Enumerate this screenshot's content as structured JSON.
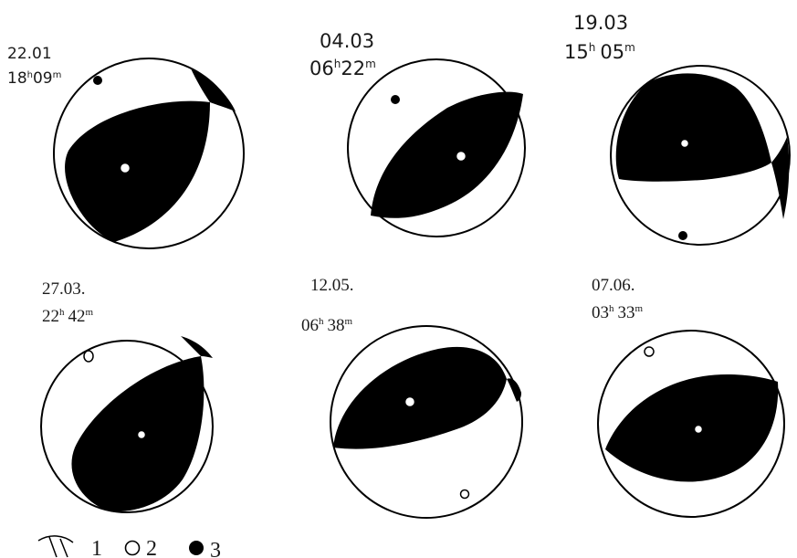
{
  "mechanisms": [
    {
      "date": "22.01",
      "time_h": "18",
      "time_m": "09",
      "label_style": "sans-small"
    },
    {
      "date": "04.03",
      "time_h": "06",
      "time_m": "22",
      "label_style": "sans-large"
    },
    {
      "date": "19.03",
      "time_h": "15",
      "time_m": "05",
      "label_style": "sans-large"
    },
    {
      "date": "27.03.",
      "time_h": "22",
      "time_m": "42",
      "label_style": "serif"
    },
    {
      "date": "12.05.",
      "time_h": "06",
      "time_m": "38",
      "label_style": "serif"
    },
    {
      "date": "07.06.",
      "time_h": "03",
      "time_m": "33",
      "label_style": "serif"
    }
  ],
  "legend": [
    {
      "icon": "nodal-planes-icon",
      "number": "1"
    },
    {
      "icon": "open-circle-icon",
      "number": "2"
    },
    {
      "icon": "filled-circle-icon",
      "number": "3"
    }
  ],
  "colors": {
    "ink": "#000000",
    "paper": "#ffffff"
  }
}
